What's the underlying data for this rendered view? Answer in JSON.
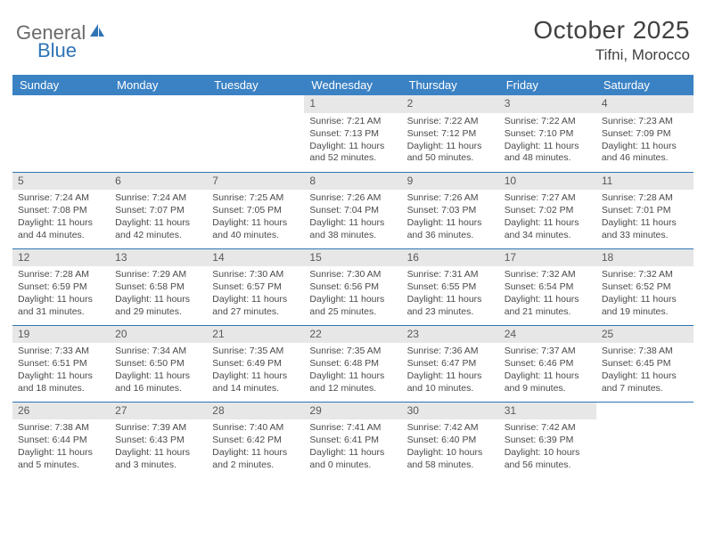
{
  "brand": {
    "part1": "General",
    "part2": "Blue"
  },
  "title": "October 2025",
  "location": "Tifni, Morocco",
  "colors": {
    "header_bg": "#3b82c4",
    "header_text": "#ffffff",
    "row_divider": "#2f74b5",
    "daynum_bg": "#e7e7e7",
    "body_text": "#4a4a4a",
    "logo_gray": "#6a6a6a",
    "logo_blue": "#2f74b5",
    "page_bg": "#ffffff"
  },
  "calendar": {
    "type": "table",
    "columns": [
      "Sunday",
      "Monday",
      "Tuesday",
      "Wednesday",
      "Thursday",
      "Friday",
      "Saturday"
    ],
    "column_width_pct": 14.28,
    "header_fontsize": 13,
    "cell_fontsize": 10.5,
    "daynum_fontsize": 12,
    "lead_blanks": 3,
    "days": [
      {
        "n": "1",
        "sunrise": "7:21 AM",
        "sunset": "7:13 PM",
        "daylight": "11 hours and 52 minutes."
      },
      {
        "n": "2",
        "sunrise": "7:22 AM",
        "sunset": "7:12 PM",
        "daylight": "11 hours and 50 minutes."
      },
      {
        "n": "3",
        "sunrise": "7:22 AM",
        "sunset": "7:10 PM",
        "daylight": "11 hours and 48 minutes."
      },
      {
        "n": "4",
        "sunrise": "7:23 AM",
        "sunset": "7:09 PM",
        "daylight": "11 hours and 46 minutes."
      },
      {
        "n": "5",
        "sunrise": "7:24 AM",
        "sunset": "7:08 PM",
        "daylight": "11 hours and 44 minutes."
      },
      {
        "n": "6",
        "sunrise": "7:24 AM",
        "sunset": "7:07 PM",
        "daylight": "11 hours and 42 minutes."
      },
      {
        "n": "7",
        "sunrise": "7:25 AM",
        "sunset": "7:05 PM",
        "daylight": "11 hours and 40 minutes."
      },
      {
        "n": "8",
        "sunrise": "7:26 AM",
        "sunset": "7:04 PM",
        "daylight": "11 hours and 38 minutes."
      },
      {
        "n": "9",
        "sunrise": "7:26 AM",
        "sunset": "7:03 PM",
        "daylight": "11 hours and 36 minutes."
      },
      {
        "n": "10",
        "sunrise": "7:27 AM",
        "sunset": "7:02 PM",
        "daylight": "11 hours and 34 minutes."
      },
      {
        "n": "11",
        "sunrise": "7:28 AM",
        "sunset": "7:01 PM",
        "daylight": "11 hours and 33 minutes."
      },
      {
        "n": "12",
        "sunrise": "7:28 AM",
        "sunset": "6:59 PM",
        "daylight": "11 hours and 31 minutes."
      },
      {
        "n": "13",
        "sunrise": "7:29 AM",
        "sunset": "6:58 PM",
        "daylight": "11 hours and 29 minutes."
      },
      {
        "n": "14",
        "sunrise": "7:30 AM",
        "sunset": "6:57 PM",
        "daylight": "11 hours and 27 minutes."
      },
      {
        "n": "15",
        "sunrise": "7:30 AM",
        "sunset": "6:56 PM",
        "daylight": "11 hours and 25 minutes."
      },
      {
        "n": "16",
        "sunrise": "7:31 AM",
        "sunset": "6:55 PM",
        "daylight": "11 hours and 23 minutes."
      },
      {
        "n": "17",
        "sunrise": "7:32 AM",
        "sunset": "6:54 PM",
        "daylight": "11 hours and 21 minutes."
      },
      {
        "n": "18",
        "sunrise": "7:32 AM",
        "sunset": "6:52 PM",
        "daylight": "11 hours and 19 minutes."
      },
      {
        "n": "19",
        "sunrise": "7:33 AM",
        "sunset": "6:51 PM",
        "daylight": "11 hours and 18 minutes."
      },
      {
        "n": "20",
        "sunrise": "7:34 AM",
        "sunset": "6:50 PM",
        "daylight": "11 hours and 16 minutes."
      },
      {
        "n": "21",
        "sunrise": "7:35 AM",
        "sunset": "6:49 PM",
        "daylight": "11 hours and 14 minutes."
      },
      {
        "n": "22",
        "sunrise": "7:35 AM",
        "sunset": "6:48 PM",
        "daylight": "11 hours and 12 minutes."
      },
      {
        "n": "23",
        "sunrise": "7:36 AM",
        "sunset": "6:47 PM",
        "daylight": "11 hours and 10 minutes."
      },
      {
        "n": "24",
        "sunrise": "7:37 AM",
        "sunset": "6:46 PM",
        "daylight": "11 hours and 9 minutes."
      },
      {
        "n": "25",
        "sunrise": "7:38 AM",
        "sunset": "6:45 PM",
        "daylight": "11 hours and 7 minutes."
      },
      {
        "n": "26",
        "sunrise": "7:38 AM",
        "sunset": "6:44 PM",
        "daylight": "11 hours and 5 minutes."
      },
      {
        "n": "27",
        "sunrise": "7:39 AM",
        "sunset": "6:43 PM",
        "daylight": "11 hours and 3 minutes."
      },
      {
        "n": "28",
        "sunrise": "7:40 AM",
        "sunset": "6:42 PM",
        "daylight": "11 hours and 2 minutes."
      },
      {
        "n": "29",
        "sunrise": "7:41 AM",
        "sunset": "6:41 PM",
        "daylight": "11 hours and 0 minutes."
      },
      {
        "n": "30",
        "sunrise": "7:42 AM",
        "sunset": "6:40 PM",
        "daylight": "10 hours and 58 minutes."
      },
      {
        "n": "31",
        "sunrise": "7:42 AM",
        "sunset": "6:39 PM",
        "daylight": "10 hours and 56 minutes."
      }
    ],
    "labels": {
      "sunrise": "Sunrise:",
      "sunset": "Sunset:",
      "daylight": "Daylight:"
    }
  }
}
